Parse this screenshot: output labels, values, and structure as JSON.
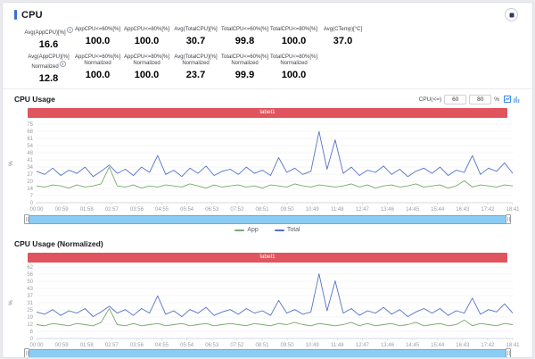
{
  "header": {
    "title": "CPU"
  },
  "stats": {
    "row1": [
      {
        "label": "Avg(AppCPU)[%]",
        "info": true,
        "value": "16.6"
      },
      {
        "label": "AppCPU<=60%[%]",
        "value": "100.0"
      },
      {
        "label": "AppCPU<=80%[%]",
        "value": "100.0"
      },
      {
        "label": "Avg(TotalCPU)[%]",
        "value": "30.7"
      },
      {
        "label": "TotalCPU<=60%[%]",
        "value": "99.8"
      },
      {
        "label": "TotalCPU<=80%[%]",
        "value": "100.0"
      },
      {
        "label": "Avg(CTemp)[°C]",
        "value": "37.0"
      }
    ],
    "row2": [
      {
        "label": "Avg(AppCPU)[%]",
        "sublabel": "Normalized",
        "info": true,
        "value": "12.8"
      },
      {
        "label": "AppCPU<=60%[%]",
        "sublabel": "Normalized",
        "value": "100.0"
      },
      {
        "label": "AppCPU<=80%[%]",
        "sublabel": "Normalized",
        "value": "100.0"
      },
      {
        "label": "Avg(TotalCPU)[%]",
        "sublabel": "Normalized",
        "value": "23.7"
      },
      {
        "label": "TotalCPU<=60%[%]",
        "sublabel": "Normalized",
        "value": "99.9"
      },
      {
        "label": "TotalCPU<=80%[%]",
        "sublabel": "Normalized",
        "value": "100.0"
      }
    ]
  },
  "controls": {
    "label": "CPU(<=)",
    "threshold1": "60",
    "threshold2": "80",
    "unit": "%",
    "icons": [
      "line-chart-icon",
      "bar-chart-icon"
    ]
  },
  "colors": {
    "accent_blue": "#3a6fd8",
    "banner_red": "#e0545e",
    "slider_blue": "#8accf4",
    "app_series": "#79a96d",
    "total_series": "#5572c8"
  },
  "chart_data": [
    {
      "type": "line",
      "title": "CPU Usage",
      "banner": "label1",
      "ylabel": "%",
      "ylim": [
        0,
        75
      ],
      "grid": true,
      "legend_position": "bottom",
      "y_ticks": [
        75,
        68,
        61,
        54,
        48,
        41,
        34,
        27,
        20,
        14,
        7,
        0
      ],
      "x_ticks": [
        "00:00",
        "00:59",
        "01:58",
        "02:57",
        "03:56",
        "04:55",
        "05:54",
        "06:53",
        "07:52",
        "08:51",
        "09:50",
        "10:49",
        "11:48",
        "12:47",
        "13:46",
        "14:45",
        "15:44",
        "16:43",
        "17:42",
        "18:41"
      ],
      "legend": [
        "App",
        "Total"
      ],
      "series": [
        {
          "name": "App",
          "color": "#79a96d",
          "values": [
            16,
            15,
            17,
            16,
            14,
            17,
            15,
            16,
            18,
            34,
            16,
            15,
            17,
            14,
            16,
            15,
            17,
            16,
            15,
            18,
            16,
            14,
            17,
            15,
            16,
            17,
            15,
            16,
            14,
            17,
            16,
            15,
            18,
            16,
            15,
            17,
            16,
            15,
            16,
            18,
            15,
            17,
            14,
            16,
            17,
            15,
            16,
            18,
            15,
            16,
            17,
            14,
            16,
            21,
            15,
            17,
            16,
            15,
            17,
            16
          ]
        },
        {
          "name": "Total",
          "color": "#5572c8",
          "values": [
            30,
            27,
            33,
            26,
            31,
            28,
            34,
            25,
            30,
            36,
            28,
            32,
            26,
            34,
            29,
            45,
            27,
            31,
            25,
            33,
            28,
            35,
            26,
            30,
            32,
            27,
            34,
            28,
            31,
            26,
            43,
            29,
            33,
            27,
            30,
            68,
            32,
            60,
            28,
            34,
            26,
            31,
            29,
            35,
            27,
            32,
            25,
            30,
            33,
            28,
            34,
            26,
            31,
            29,
            45,
            27,
            33,
            30,
            38,
            28
          ]
        }
      ]
    },
    {
      "type": "line",
      "title": "CPU Usage (Normalized)",
      "banner": "label1",
      "ylabel": "%",
      "ylim": [
        0,
        62
      ],
      "grid": true,
      "legend_position": "bottom",
      "y_ticks": [
        62,
        56,
        50,
        43,
        37,
        31,
        25,
        19,
        12,
        6,
        0
      ],
      "x_ticks": [
        "00:00",
        "00:59",
        "01:58",
        "02:57",
        "03:56",
        "04:55",
        "05:54",
        "06:53",
        "07:52",
        "08:51",
        "09:50",
        "10:49",
        "11:48",
        "12:47",
        "13:46",
        "14:45",
        "15:44",
        "16:43",
        "17:42",
        "18:41"
      ],
      "legend": [
        "App",
        "Total"
      ],
      "series": [
        {
          "name": "App",
          "color": "#79a96d",
          "values": [
            12,
            11,
            13,
            12,
            11,
            13,
            12,
            11,
            14,
            26,
            12,
            11,
            13,
            11,
            12,
            13,
            11,
            12,
            13,
            11,
            12,
            13,
            11,
            12,
            13,
            12,
            11,
            13,
            12,
            11,
            13,
            12,
            14,
            12,
            11,
            13,
            12,
            11,
            12,
            14,
            11,
            13,
            11,
            12,
            13,
            11,
            12,
            14,
            11,
            12,
            13,
            11,
            12,
            16,
            11,
            13,
            12,
            11,
            13,
            12
          ]
        },
        {
          "name": "Total",
          "color": "#5572c8",
          "values": [
            23,
            21,
            25,
            20,
            24,
            22,
            26,
            19,
            23,
            28,
            22,
            25,
            20,
            26,
            22,
            37,
            21,
            24,
            19,
            25,
            22,
            27,
            20,
            23,
            25,
            21,
            26,
            22,
            24,
            20,
            33,
            22,
            25,
            21,
            23,
            56,
            24,
            50,
            22,
            26,
            20,
            24,
            22,
            27,
            21,
            25,
            19,
            23,
            26,
            22,
            26,
            20,
            24,
            22,
            35,
            21,
            25,
            23,
            30,
            22
          ]
        }
      ]
    }
  ]
}
